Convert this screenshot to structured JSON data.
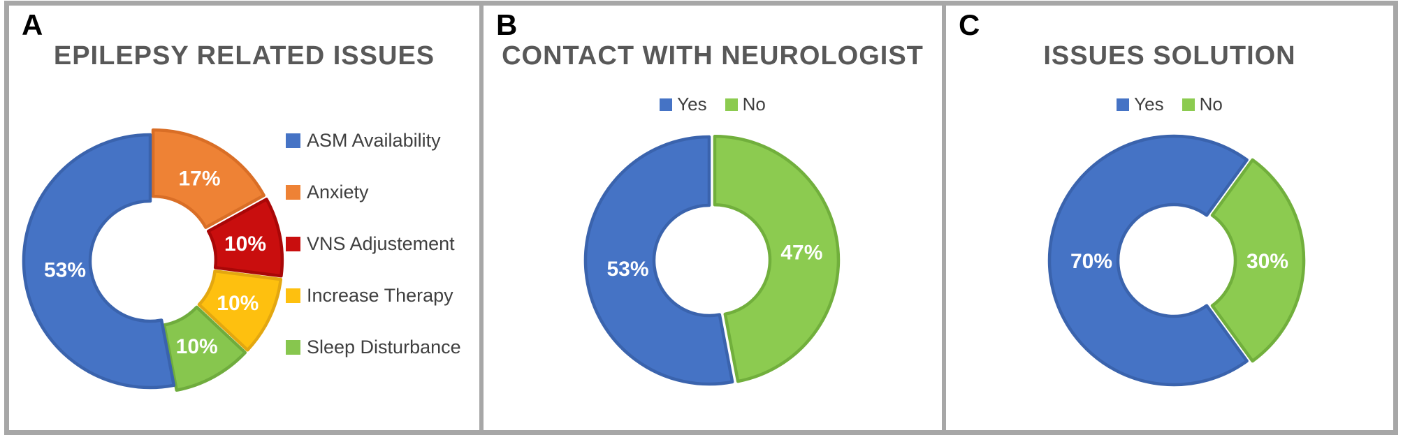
{
  "figure": {
    "background": "#ffffff",
    "frame_color": "#a7a7a7"
  },
  "chart_data": [
    {
      "panel_label": "A",
      "title": "EPILEPSY RELATED ISSUES",
      "type": "donut",
      "unit": "percent",
      "legend_position": "right",
      "start_angle_deg": 0,
      "draw_sequence": [
        1,
        2,
        3,
        4,
        0
      ],
      "outer_radius": 181,
      "inner_radius": 86,
      "slices": [
        {
          "label": "ASM Availability",
          "value": 53,
          "data_label": "53%",
          "color": "#4573C5",
          "border": "#3A63AD",
          "explode": 0
        },
        {
          "label": "Anxiety",
          "value": 17,
          "data_label": "17%",
          "color": "#EE8235",
          "border": "#D96E26",
          "explode": 8
        },
        {
          "label": "VNS Adjustement",
          "value": 10,
          "data_label": "10%",
          "color": "#C90E0E",
          "border": "#A90707",
          "explode": 8
        },
        {
          "label": "Increase Therapy",
          "value": 10,
          "data_label": "10%",
          "color": "#FEC00F",
          "border": "#E3A710",
          "explode": 8
        },
        {
          "label": "Sleep Disturbance",
          "value": 10,
          "data_label": "10%",
          "color": "#87C64E",
          "border": "#6FAC3D",
          "explode": 8
        }
      ]
    },
    {
      "panel_label": "B",
      "title": "CONTACT WITH NEUROLOGIST",
      "type": "donut",
      "unit": "percent",
      "legend_position": "top",
      "start_angle_deg": 0,
      "draw_sequence": [
        1,
        0
      ],
      "outer_radius": 177,
      "inner_radius": 79,
      "slices": [
        {
          "label": "Yes",
          "value": 53,
          "data_label": "53%",
          "color": "#4573C5",
          "border": "#3A63AD",
          "explode": 0
        },
        {
          "label": "No",
          "value": 47,
          "data_label": "47%",
          "color": "#8CCB50",
          "border": "#71AF3C",
          "explode": 8
        }
      ]
    },
    {
      "panel_label": "C",
      "title": "ISSUES SOLUTION",
      "type": "donut",
      "unit": "percent",
      "legend_position": "top",
      "start_angle_deg": 144,
      "draw_sequence": [
        0,
        1
      ],
      "outer_radius": 178,
      "inner_radius": 80,
      "slices": [
        {
          "label": "Yes",
          "value": 70,
          "data_label": "70%",
          "color": "#4573C5",
          "border": "#3A63AD",
          "explode": 0
        },
        {
          "label": "No",
          "value": 30,
          "data_label": "30%",
          "color": "#8CCB50",
          "border": "#71AF3C",
          "explode": 8
        }
      ]
    }
  ]
}
